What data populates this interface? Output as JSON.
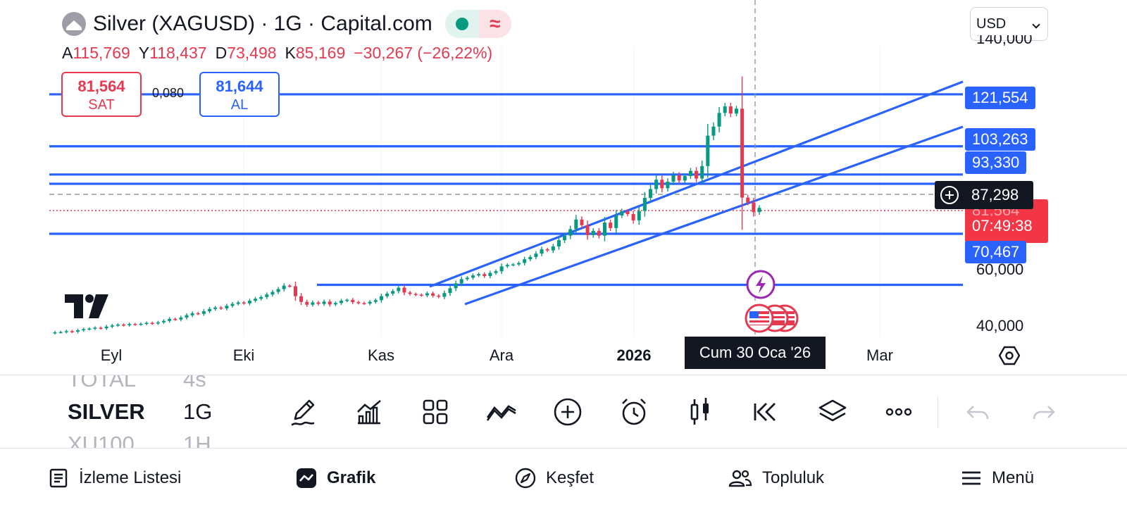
{
  "header": {
    "title": "Silver (XAGUSD) · 1G · Capital.com",
    "delay_symbol": "≈",
    "currency": "USD"
  },
  "ohlc": {
    "open_label": "A",
    "open": "115,769",
    "high_label": "Y",
    "high": "118,437",
    "low_label": "D",
    "low": "73,498",
    "close_label": "K",
    "close": "85,169",
    "change": "−30,267 (−26,22%)"
  },
  "trade": {
    "sell_price": "81,564",
    "sell_label": "SAT",
    "spread": "0,080",
    "buy_price": "81,644",
    "buy_label": "AL"
  },
  "price_axis": {
    "top_partial": "140,000",
    "tick_60": "60,000",
    "tick_40": "40,000",
    "partial_behind": "81,564"
  },
  "price_labels": {
    "l1": "121,554",
    "l2": "103,263",
    "l3": "93,330",
    "crosshair": "87,298",
    "last": "81,564",
    "countdown": "07:49:38",
    "l5": "70,467"
  },
  "time_axis": {
    "labels": [
      "Eyl",
      "Eki",
      "Kas",
      "Ara",
      "2026",
      "Mar"
    ],
    "crosshair_date": "Cum 30 Oca '26"
  },
  "watchlist_peek": [
    {
      "name": "TOTAL",
      "tf": "4s"
    },
    {
      "name": "SILVER",
      "tf": "1G"
    },
    {
      "name": "XU100",
      "tf": "1H"
    }
  ],
  "toolbar_icons": [
    "pencil-icon",
    "indicators-icon",
    "grid-layout-icon",
    "drawings-icon",
    "plus-circle-icon",
    "alarm-icon",
    "candles-icon",
    "replay-icon",
    "layers-icon",
    "more-icon",
    "undo-icon",
    "redo-icon"
  ],
  "nav": {
    "watchlist": "İzleme Listesi",
    "chart": "Grafik",
    "explore": "Keşfet",
    "community": "Topluluk",
    "menu": "Menü"
  },
  "colors": {
    "line_blue": "#2962ff",
    "up": "#089981",
    "down": "#e53950",
    "axis_dark": "#131722"
  },
  "chart_data": {
    "type": "candlestick",
    "symbol": "XAGUSD",
    "timeframe": "1G",
    "x_labels": [
      "Eyl",
      "Eki",
      "Kas",
      "Ara",
      "2026",
      "Mar"
    ],
    "horizontal_levels": [
      121.554,
      103.263,
      93.33,
      81.564,
      70.467,
      54.5
    ],
    "dashed_level": 87.298,
    "channel": [
      {
        "from": [
          "2025-11-14",
          54.5
        ],
        "to": [
          "2026-03-10",
          129.0
        ]
      },
      {
        "from": [
          "2025-11-24",
          48.0
        ],
        "to": [
          "2026-03-10",
          114.0
        ]
      }
    ],
    "closes": [
      37.8,
      37.9,
      38.2,
      38.0,
      38.5,
      38.9,
      39.1,
      39.4,
      39.2,
      39.8,
      40.2,
      40.5,
      40.3,
      40.7,
      40.6,
      40.8,
      41.1,
      40.9,
      41.3,
      41.8,
      42.5,
      42.3,
      43.0,
      43.8,
      44.5,
      44.3,
      45.2,
      46.0,
      46.5,
      46.2,
      47.1,
      47.8,
      48.3,
      48.0,
      48.9,
      49.6,
      50.2,
      51.1,
      52.0,
      53.0,
      54.2,
      54.0,
      50.5,
      48.5,
      47.5,
      48.3,
      47.8,
      48.6,
      47.6,
      48.1,
      48.9,
      49.2,
      48.4,
      48.1,
      47.9,
      48.5,
      49.1,
      50.5,
      51.4,
      52.3,
      53.5,
      51.8,
      51.3,
      51.0,
      50.8,
      51.5,
      50.7,
      50.3,
      51.6,
      53.3,
      55.0,
      56.5,
      57.0,
      57.8,
      58.3,
      57.6,
      58.7,
      59.3,
      61.0,
      61.5,
      61.7,
      62.2,
      63.5,
      64.3,
      65.5,
      67.0,
      66.6,
      68.0,
      70.2,
      71.8,
      74.1,
      77.5,
      75.5,
      72.0,
      73.5,
      71.8,
      76.4,
      74.5,
      78.9,
      80.4,
      79.4,
      77.2,
      80.5,
      85.1,
      88.2,
      91.5,
      88.5,
      90.8,
      93.1,
      91.2,
      92.8,
      94.6,
      91.9,
      96.3,
      107.0,
      110.2,
      115.0,
      117.3,
      114.8,
      116.5,
      85.2,
      83.5,
      80.1,
      81.6
    ]
  }
}
